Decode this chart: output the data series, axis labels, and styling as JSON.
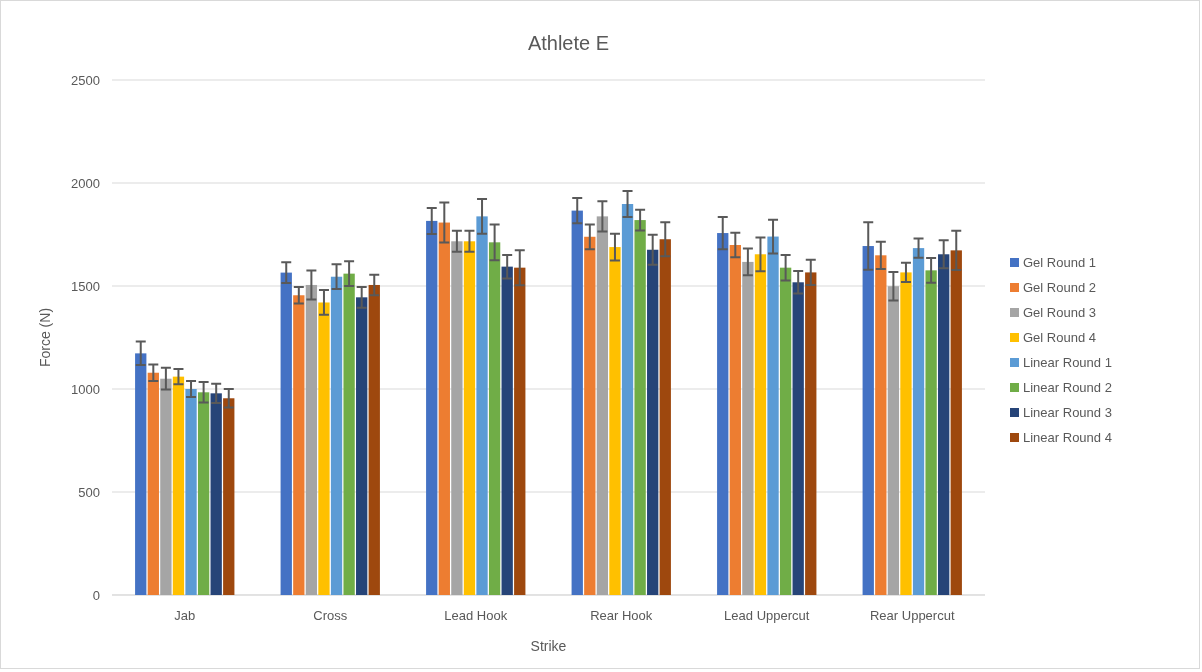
{
  "chart_data": {
    "type": "bar",
    "title": "Athlete E",
    "xlabel": "Strike",
    "ylabel": "Force (N)",
    "categories": [
      "Jab",
      "Cross",
      "Lead Hook",
      "Rear Hook",
      "Lead Uppercut",
      "Rear Uppercut"
    ],
    "ylim": [
      0,
      2500
    ],
    "yticks": [
      0,
      500,
      1000,
      1500,
      2000,
      2500
    ],
    "grid": "y",
    "legend": "right",
    "series": [
      {
        "name": "Gel Round 1",
        "color": "#4472c4",
        "values": [
          1173,
          1565,
          1816,
          1866,
          1757,
          1694
        ],
        "errors": [
          57,
          50,
          63,
          61,
          78,
          115
        ]
      },
      {
        "name": "Gel Round 2",
        "color": "#ed7d31",
        "values": [
          1079,
          1455,
          1808,
          1739,
          1699,
          1649
        ],
        "errors": [
          40,
          40,
          97,
          60,
          60,
          66
        ]
      },
      {
        "name": "Gel Round 3",
        "color": "#a5a5a5",
        "values": [
          1050,
          1505,
          1717,
          1838,
          1617,
          1499
        ],
        "errors": [
          53,
          70,
          51,
          74,
          65,
          69
        ]
      },
      {
        "name": "Gel Round 4",
        "color": "#ffc000",
        "values": [
          1060,
          1420,
          1717,
          1689,
          1654,
          1566
        ],
        "errors": [
          37,
          60,
          51,
          65,
          82,
          47
        ]
      },
      {
        "name": "Linear Round 1",
        "color": "#5b9bd5",
        "values": [
          1000,
          1545,
          1838,
          1898,
          1740,
          1684
        ],
        "errors": [
          39,
          60,
          84,
          63,
          82,
          47
        ]
      },
      {
        "name": "Linear Round 2",
        "color": "#70ad47",
        "values": [
          984,
          1560,
          1712,
          1820,
          1589,
          1576
        ],
        "errors": [
          50,
          60,
          87,
          50,
          62,
          60
        ]
      },
      {
        "name": "Linear Round 3",
        "color": "#264478",
        "values": [
          979,
          1445,
          1594,
          1676,
          1518,
          1654
        ],
        "errors": [
          47,
          50,
          57,
          73,
          55,
          68
        ]
      },
      {
        "name": "Linear Round 4",
        "color": "#9e480e",
        "values": [
          955,
          1505,
          1589,
          1727,
          1566,
          1673
        ],
        "errors": [
          45,
          50,
          85,
          83,
          61,
          95
        ]
      }
    ]
  }
}
